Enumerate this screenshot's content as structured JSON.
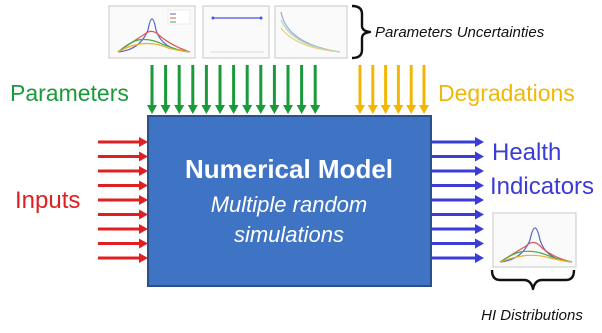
{
  "labels": {
    "parameters": "Parameters",
    "degradations": "Degradations",
    "inputs": "Inputs",
    "health_line1": "Health",
    "health_line2": "Indicators",
    "uncertainties": "Parameters Uncertainties",
    "hi_distributions": "HI Distributions"
  },
  "model": {
    "title": "Numerical Model",
    "subtitle_line1": "Multiple random",
    "subtitle_line2": "simulations"
  },
  "colors": {
    "parameters": "#1a9a3a",
    "degradations": "#f2b705",
    "inputs": "#e02020",
    "health": "#3b3bd8",
    "model_fill": "#3f73c4",
    "model_border": "#2b4f8a"
  },
  "arrows": {
    "parameters_count": 13,
    "degradations_count": 6,
    "inputs_count": 9,
    "outputs_count": 9
  }
}
